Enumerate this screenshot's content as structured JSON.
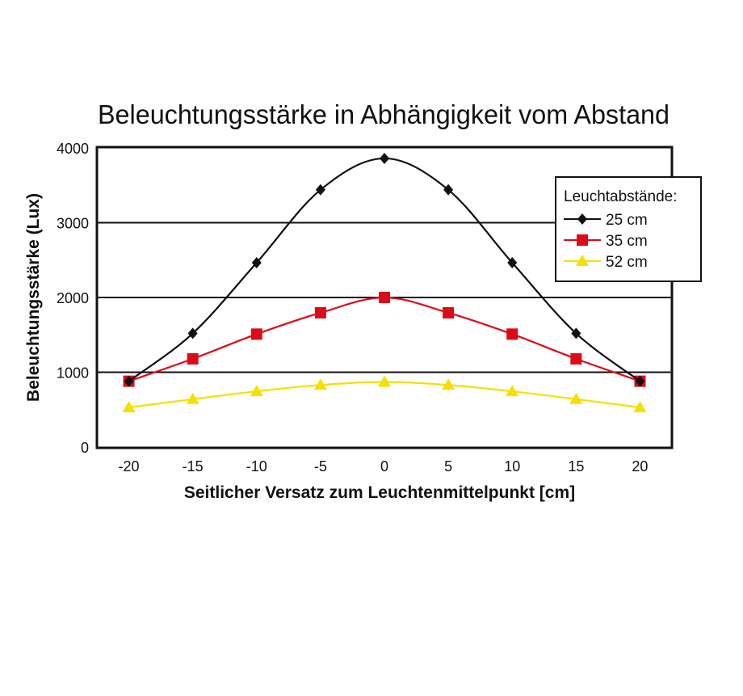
{
  "chart_data": {
    "type": "line",
    "title": "Beleuchtungsstärke in Abhängigkeit vom Abstand",
    "xlabel": "Seitlicher Versatz zum Leuchtenmittelpunkt [cm]",
    "ylabel": "Beleuchtungsstärke (Lux)",
    "xlim": [
      -22.5,
      22.5
    ],
    "ylim": [
      0,
      4000
    ],
    "x": [
      -20,
      -15,
      -10,
      -5,
      0,
      5,
      10,
      15,
      20
    ],
    "xticks": [
      "-20",
      "-15",
      "-10",
      "-5",
      "0",
      "5",
      "10",
      "15",
      "20"
    ],
    "yticks": [
      "0",
      "1000",
      "2000",
      "3000",
      "4000"
    ],
    "grid": "horizontal",
    "legend": {
      "title": "Leuchtabstände:",
      "placement": "top-right"
    },
    "series": [
      {
        "name": "25 cm",
        "color": "#111111",
        "marker": "diamond",
        "values": [
          880,
          1520,
          2465,
          3440,
          3860,
          3440,
          2465,
          1520,
          880
        ]
      },
      {
        "name": "35 cm",
        "color": "#dd0a1a",
        "marker": "square",
        "values": [
          880,
          1180,
          1510,
          1795,
          2000,
          1795,
          1510,
          1180,
          880
        ]
      },
      {
        "name": "52 cm",
        "color": "#f5e000",
        "marker": "triangle",
        "values": [
          530,
          640,
          745,
          830,
          870,
          830,
          745,
          640,
          530
        ]
      }
    ]
  }
}
